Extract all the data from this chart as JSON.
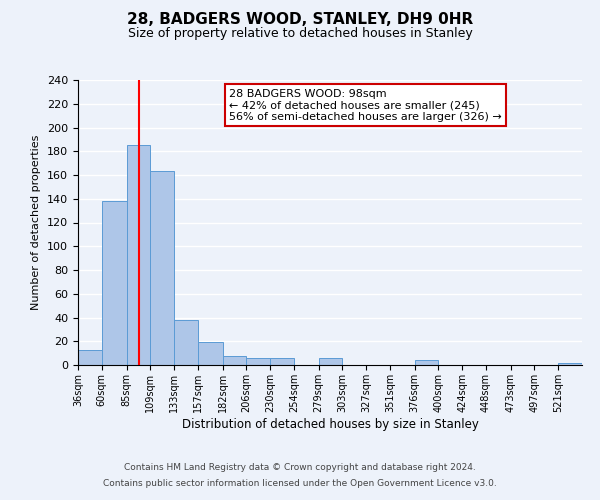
{
  "title": "28, BADGERS WOOD, STANLEY, DH9 0HR",
  "subtitle": "Size of property relative to detached houses in Stanley",
  "xlabel": "Distribution of detached houses by size in Stanley",
  "ylabel": "Number of detached properties",
  "bin_labels": [
    "36sqm",
    "60sqm",
    "85sqm",
    "109sqm",
    "133sqm",
    "157sqm",
    "182sqm",
    "206sqm",
    "230sqm",
    "254sqm",
    "279sqm",
    "303sqm",
    "327sqm",
    "351sqm",
    "376sqm",
    "400sqm",
    "424sqm",
    "448sqm",
    "473sqm",
    "497sqm",
    "521sqm"
  ],
  "bin_edges": [
    36,
    60,
    85,
    109,
    133,
    157,
    182,
    206,
    230,
    254,
    279,
    303,
    327,
    351,
    376,
    400,
    424,
    448,
    473,
    497,
    521
  ],
  "bar_heights": [
    13,
    138,
    185,
    163,
    38,
    19,
    8,
    6,
    6,
    0,
    6,
    0,
    0,
    0,
    4,
    0,
    0,
    0,
    0,
    0,
    2
  ],
  "bar_color": "#aec6e8",
  "bar_edge_color": "#5b9bd5",
  "marker_value": 98,
  "marker_color": "#ff0000",
  "ylim": [
    0,
    240
  ],
  "yticks": [
    0,
    20,
    40,
    60,
    80,
    100,
    120,
    140,
    160,
    180,
    200,
    220,
    240
  ],
  "annotation_title": "28 BADGERS WOOD: 98sqm",
  "annotation_line1": "← 42% of detached houses are smaller (245)",
  "annotation_line2": "56% of semi-detached houses are larger (326) →",
  "annotation_box_color": "#ffffff",
  "annotation_box_edge": "#cc0000",
  "footer1": "Contains HM Land Registry data © Crown copyright and database right 2024.",
  "footer2": "Contains public sector information licensed under the Open Government Licence v3.0.",
  "background_color": "#edf2fa",
  "grid_color": "#ffffff"
}
